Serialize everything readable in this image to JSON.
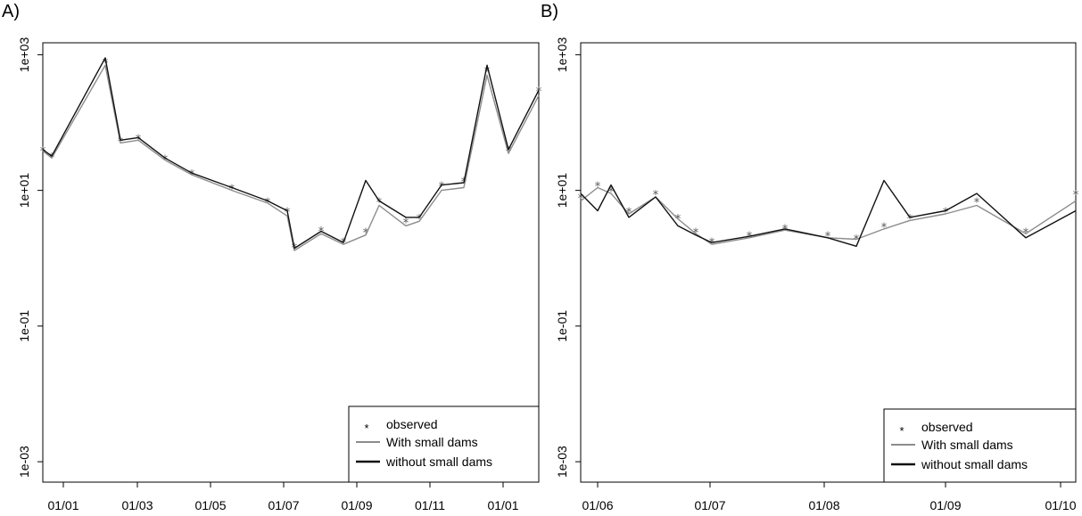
{
  "panels": [
    {
      "label": "A)",
      "ytick_labels": [
        "1e-03",
        "1e-01",
        "1e+01",
        "1e+03"
      ],
      "xtick_labels": [
        "01/01",
        "01/03",
        "01/05",
        "01/07",
        "01/09",
        "01/11",
        "01/01"
      ],
      "legend": {
        "observed": "observed",
        "with": "With small dams",
        "without": "without small dams"
      }
    },
    {
      "label": "B)",
      "ytick_labels": [
        "1e-03",
        "1e-01",
        "1e+01",
        "1e+03"
      ],
      "xtick_labels": [
        "01/06",
        "01/07",
        "01/08",
        "01/09",
        "01/10"
      ],
      "legend": {
        "observed": "observed",
        "with": "With small dams",
        "without": "without small dams"
      }
    }
  ],
  "colors": {
    "with_small_dams": "#8c8c8c",
    "without_small_dams": "#111111",
    "observed": "#555555"
  },
  "chart_data": [
    {
      "type": "line",
      "yscale": "log",
      "ylim": [
        0.0005,
        1500
      ],
      "yticks": [
        0.001,
        0.1,
        10,
        1000
      ],
      "x": [
        "01/01",
        "01/02",
        "02/05",
        "02/20",
        "03/01",
        "03/15",
        "04/01",
        "05/01",
        "06/01",
        "06/15",
        "07/01",
        "07/15",
        "08/01",
        "08/15",
        "09/01",
        "10/01",
        "10/15",
        "11/01",
        "11/15",
        "12/01",
        "12/15",
        "12/31"
      ],
      "series": [
        {
          "name": "observed",
          "marker": "*",
          "values": [
            40,
            32,
            800,
            55,
            60,
            30,
            18,
            11,
            7,
            5,
            1.5,
            2.6,
            1.8,
            2.5,
            7,
            3.5,
            4,
            12,
            14,
            600,
            40,
            300
          ]
        },
        {
          "name": "With small dams",
          "values": [
            38,
            30,
            700,
            50,
            55,
            28,
            17,
            10,
            6.5,
            4.2,
            1.3,
            2.3,
            1.6,
            2.2,
            6,
            3,
            3.5,
            10,
            11,
            500,
            35,
            250
          ]
        },
        {
          "name": "without small dams",
          "values": [
            40,
            32,
            900,
            55,
            60,
            30,
            18,
            11,
            7,
            5,
            1.4,
            2.5,
            1.7,
            14,
            7,
            4,
            4,
            12,
            13,
            700,
            40,
            300
          ]
        }
      ]
    },
    {
      "type": "line",
      "yscale": "log",
      "ylim": [
        0.0005,
        1500
      ],
      "yticks": [
        0.001,
        0.1,
        10,
        1000
      ],
      "x": [
        "05/27",
        "06/01",
        "06/05",
        "06/10",
        "06/15",
        "06/20",
        "06/25",
        "07/01",
        "07/10",
        "07/20",
        "08/01",
        "08/10",
        "08/15",
        "08/20",
        "09/01",
        "09/10",
        "09/20",
        "10/01"
      ],
      "series": [
        {
          "name": "observed",
          "marker": "*",
          "values": [
            8,
            12,
            10,
            5,
            9,
            4,
            2.5,
            1.8,
            2.2,
            2.8,
            2.2,
            2,
            3,
            4,
            5,
            7,
            2.5,
            9
          ]
        },
        {
          "name": "With small dams",
          "values": [
            7,
            11,
            9,
            4.5,
            8,
            3.8,
            2.3,
            1.6,
            2,
            2.6,
            2,
            1.9,
            2.7,
            3.6,
            4.5,
            6,
            2.3,
            7
          ]
        },
        {
          "name": "without small dams",
          "values": [
            9,
            5,
            12,
            4,
            8,
            3,
            2.2,
            1.7,
            2.1,
            2.7,
            2,
            1.5,
            14,
            4,
            5,
            9,
            2,
            5
          ]
        }
      ]
    }
  ]
}
